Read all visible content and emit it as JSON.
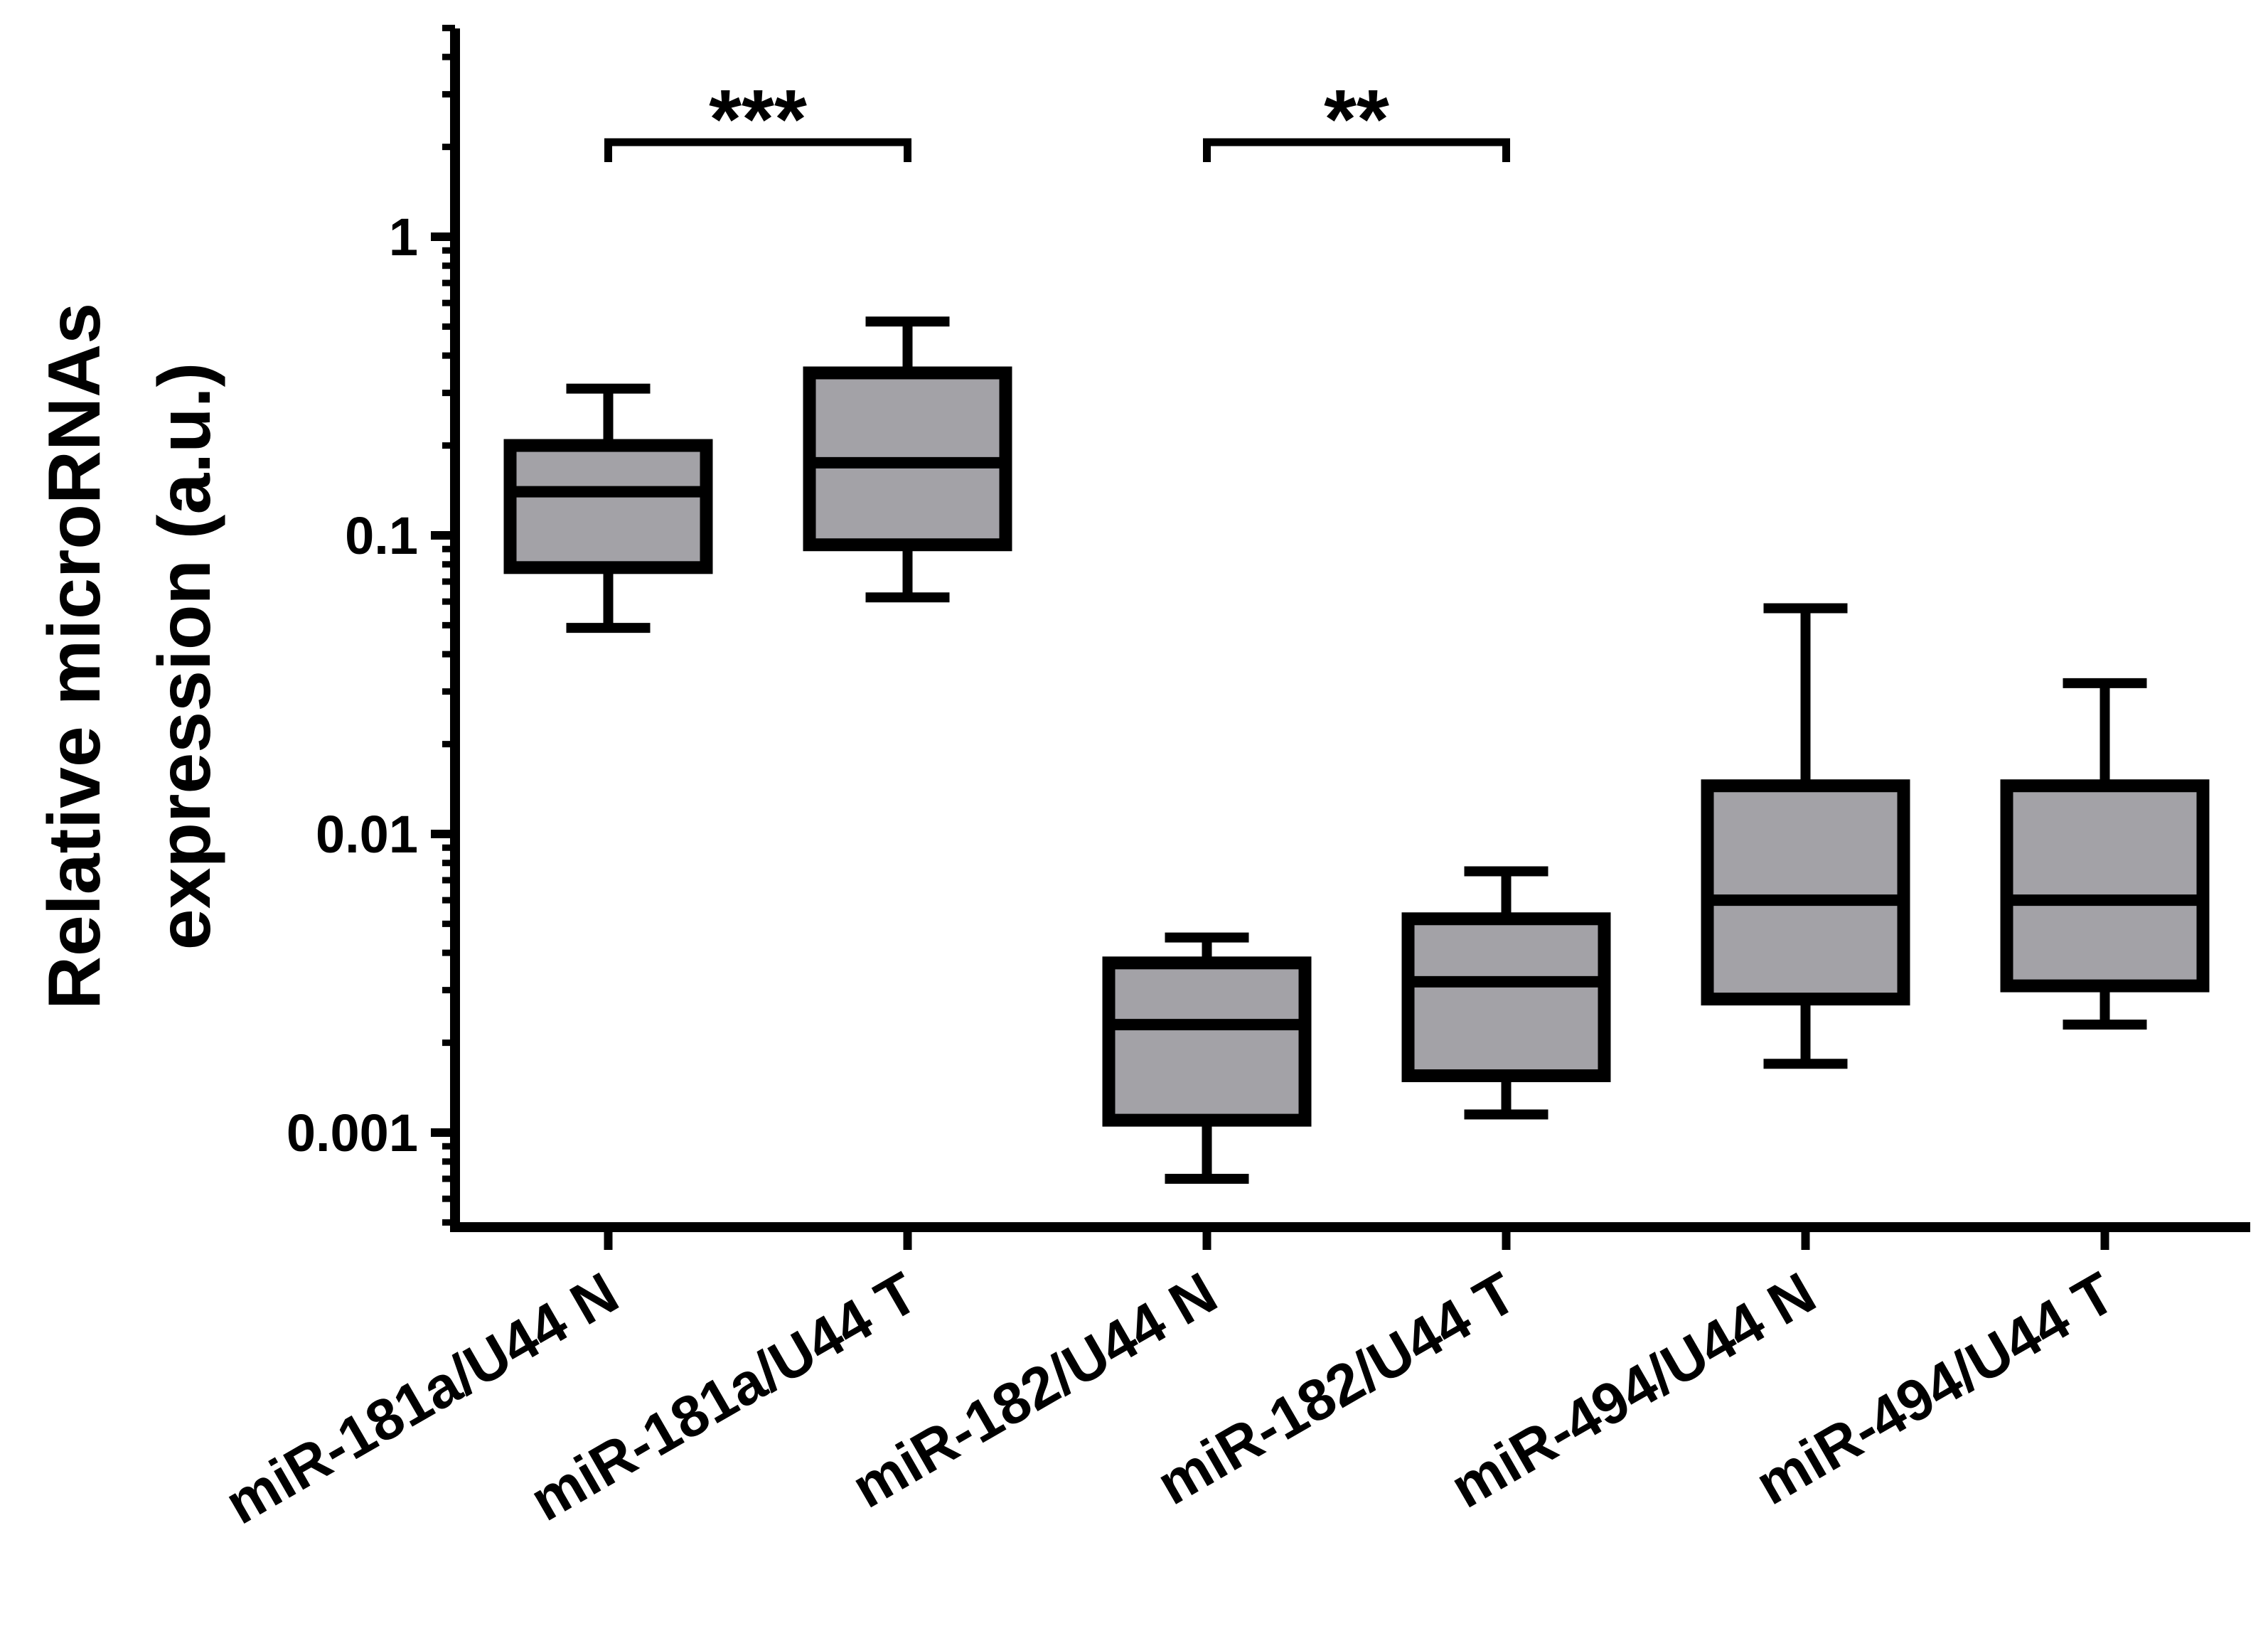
{
  "chart_data": {
    "type": "box",
    "ylabel": [
      "Relative microRNAs",
      "expression (a.u.)"
    ],
    "xlabel": "",
    "yscale": "log",
    "ylim": [
      0.0005,
      5
    ],
    "y_ticks": [
      {
        "value": 1,
        "label": "1"
      },
      {
        "value": 0.1,
        "label": "0.1"
      },
      {
        "value": 0.01,
        "label": "0.01"
      },
      {
        "value": 0.001,
        "label": "0.001"
      }
    ],
    "categories": [
      "miR-181a/U44 N",
      "miR-181a/U44 T",
      "miR-182/U44 N",
      "miR-182/U44 T",
      "miR-494/U44 N",
      "miR-494/U44 T"
    ],
    "boxes": [
      {
        "min": 0.049,
        "q1": 0.078,
        "median": 0.14,
        "q3": 0.2,
        "max": 0.31
      },
      {
        "min": 0.062,
        "q1": 0.093,
        "median": 0.175,
        "q3": 0.35,
        "max": 0.52
      },
      {
        "min": 0.0007,
        "q1": 0.0011,
        "median": 0.0023,
        "q3": 0.0037,
        "max": 0.0045
      },
      {
        "min": 0.00115,
        "q1": 0.00155,
        "median": 0.0032,
        "q3": 0.0052,
        "max": 0.0075
      },
      {
        "min": 0.0017,
        "q1": 0.0028,
        "median": 0.006,
        "q3": 0.0145,
        "max": 0.057
      },
      {
        "min": 0.0023,
        "q1": 0.0031,
        "median": 0.006,
        "q3": 0.0145,
        "max": 0.032
      }
    ],
    "significance": [
      {
        "between": [
          0,
          1
        ],
        "label": "***"
      },
      {
        "between": [
          2,
          3
        ],
        "label": "**"
      }
    ],
    "colors": {
      "box_fill": "#a3a2a7",
      "stroke": "#000000",
      "background": "#ffffff"
    },
    "grid": false,
    "legend": "none"
  }
}
